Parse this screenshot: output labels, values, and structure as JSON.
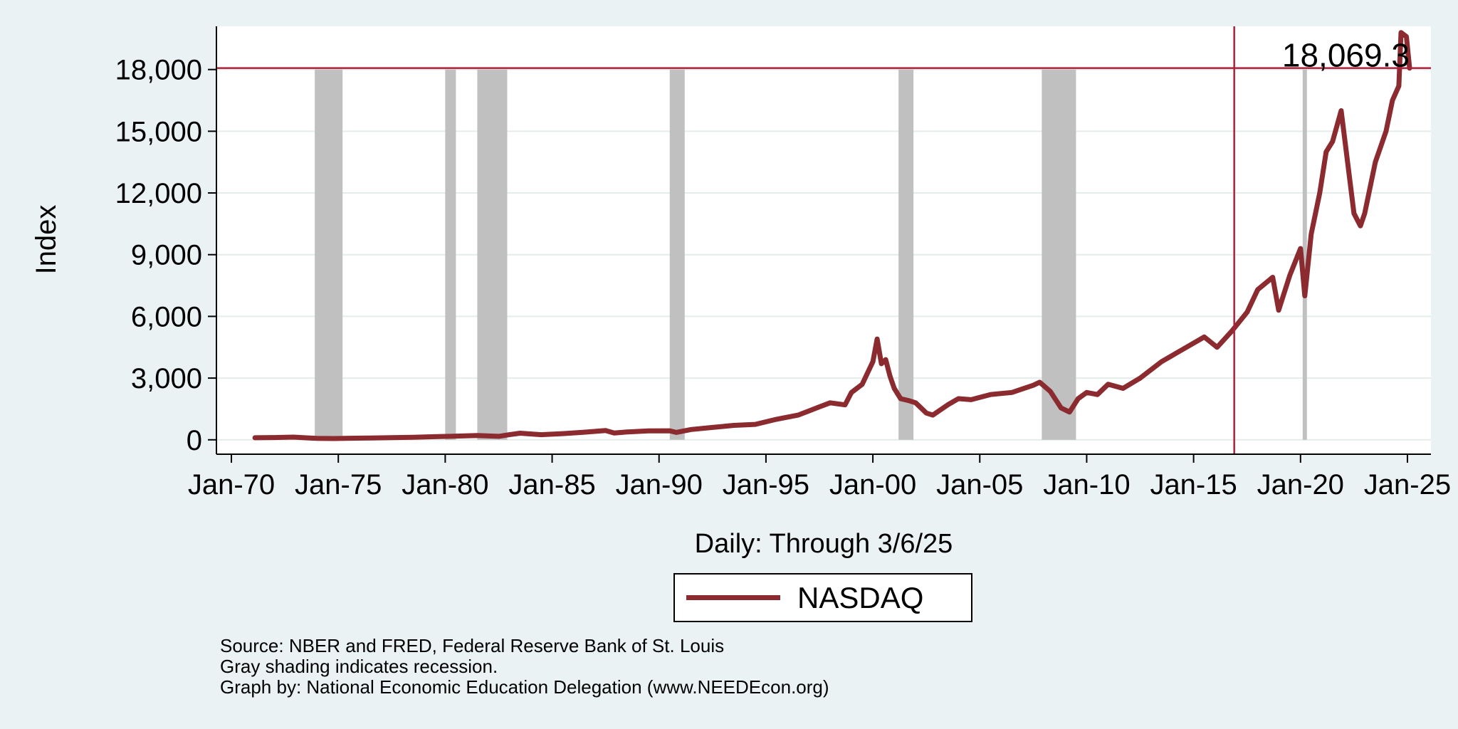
{
  "chart_data": {
    "type": "line",
    "title": "",
    "xlabel": "Daily: Through 3/6/25",
    "ylabel": "Index",
    "ylim": [
      -700,
      20100
    ],
    "xlim": [
      1969.3,
      2026.1
    ],
    "yticks": [
      0,
      3000,
      6000,
      9000,
      12000,
      15000,
      18000
    ],
    "ytick_labels": [
      "0",
      "3,000",
      "6,000",
      "9,000",
      "12,000",
      "15,000",
      "18,000"
    ],
    "xticks": [
      1970,
      1975,
      1980,
      1985,
      1990,
      1995,
      2000,
      2005,
      2010,
      2015,
      2020,
      2025
    ],
    "xtick_labels": [
      "Jan-70",
      "Jan-75",
      "Jan-80",
      "Jan-85",
      "Jan-90",
      "Jan-95",
      "Jan-00",
      "Jan-05",
      "Jan-10",
      "Jan-15",
      "Jan-20",
      "Jan-25"
    ],
    "grid": true,
    "legend_position": "bottom-center",
    "series": [
      {
        "name": "NASDAQ",
        "color": "#8b2a2f",
        "x": [
          1971.1,
          1972.0,
          1972.9,
          1973.5,
          1974.0,
          1974.8,
          1975.5,
          1976.5,
          1977.5,
          1978.5,
          1979.5,
          1980.5,
          1981.5,
          1982.5,
          1983.0,
          1983.5,
          1984.5,
          1985.5,
          1986.5,
          1987.5,
          1987.9,
          1988.5,
          1989.5,
          1990.5,
          1990.8,
          1991.5,
          1992.5,
          1993.5,
          1994.5,
          1995.5,
          1996.5,
          1997.5,
          1998.0,
          1998.7,
          1999.0,
          1999.5,
          2000.0,
          2000.2,
          2000.4,
          2000.6,
          2000.8,
          2001.0,
          2001.3,
          2001.7,
          2002.0,
          2002.5,
          2002.8,
          2003.5,
          2004.0,
          2004.6,
          2005.5,
          2006.5,
          2007.5,
          2007.8,
          2008.3,
          2008.8,
          2009.2,
          2009.6,
          2010.0,
          2010.5,
          2011.0,
          2011.7,
          2012.5,
          2013.5,
          2014.5,
          2015.5,
          2016.1,
          2016.8,
          2017.5,
          2018.0,
          2018.7,
          2018.98,
          2019.5,
          2020.0,
          2020.2,
          2020.5,
          2020.9,
          2021.2,
          2021.5,
          2021.9,
          2022.2,
          2022.5,
          2022.8,
          2023.0,
          2023.5,
          2024.0,
          2024.3,
          2024.6,
          2024.7,
          2024.95,
          2025.1
        ],
        "y": [
          100,
          110,
          130,
          95,
          70,
          60,
          75,
          90,
          105,
          120,
          150,
          180,
          210,
          170,
          250,
          320,
          250,
          300,
          370,
          450,
          330,
          380,
          430,
          440,
          360,
          500,
          600,
          700,
          750,
          1000,
          1200,
          1600,
          1800,
          1700,
          2300,
          2700,
          3800,
          4900,
          3700,
          3900,
          3100,
          2500,
          2000,
          1900,
          1800,
          1300,
          1200,
          1700,
          2000,
          1950,
          2200,
          2300,
          2650,
          2800,
          2350,
          1550,
          1350,
          2000,
          2300,
          2200,
          2700,
          2500,
          3000,
          3800,
          4400,
          5000,
          4500,
          5300,
          6200,
          7300,
          7900,
          6300,
          8000,
          9300,
          7000,
          10000,
          12000,
          14000,
          14500,
          16000,
          13500,
          11000,
          10400,
          11000,
          13500,
          15000,
          16500,
          17200,
          19800,
          19600,
          18069.3
        ]
      }
    ],
    "recessions": [
      [
        1973.9,
        1975.2
      ],
      [
        1980.0,
        1980.5
      ],
      [
        1981.5,
        1982.9
      ],
      [
        1990.5,
        1991.2
      ],
      [
        2001.2,
        2001.9
      ],
      [
        2007.9,
        2009.5
      ],
      [
        2020.1,
        2020.3
      ]
    ],
    "recession_shading_top": 18000,
    "reference_line_y": 18069.3,
    "reference_line_x": 2016.9,
    "annotation": {
      "text": "18,069.3",
      "x": 2025.1,
      "y": 18069.3
    }
  },
  "legend": {
    "label": "NASDAQ"
  },
  "footnotes": {
    "source": "Source: NBER and FRED, Federal Reserve Bank of St. Louis",
    "shading": "Gray shading indicates recession.",
    "credit": "Graph by: National Economic Education Delegation (www.NEEDEcon.org)"
  },
  "colors": {
    "background": "#eaf2f3",
    "plot_background": "#ffffff",
    "gridline": "#e4ecec",
    "recession": "#c0c0c0",
    "reference_line": "#b0203a",
    "series": "#8b2a2f"
  }
}
